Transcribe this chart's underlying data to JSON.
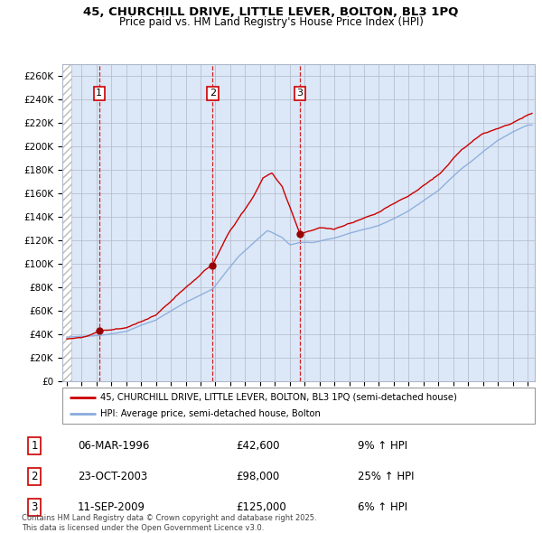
{
  "title_line1": "45, CHURCHILL DRIVE, LITTLE LEVER, BOLTON, BL3 1PQ",
  "title_line2": "Price paid vs. HM Land Registry's House Price Index (HPI)",
  "xlim_years": [
    1993.7,
    2025.5
  ],
  "ylim": [
    0,
    270000
  ],
  "yticks": [
    0,
    20000,
    40000,
    60000,
    80000,
    100000,
    120000,
    140000,
    160000,
    180000,
    200000,
    220000,
    240000,
    260000
  ],
  "ytick_labels": [
    "£0",
    "£20K",
    "£40K",
    "£60K",
    "£80K",
    "£100K",
    "£120K",
    "£140K",
    "£160K",
    "£180K",
    "£200K",
    "£220K",
    "£240K",
    "£260K"
  ],
  "sales": [
    {
      "date_year": 1996.18,
      "price": 42600,
      "label": "1"
    },
    {
      "date_year": 2003.81,
      "price": 98000,
      "label": "2"
    },
    {
      "date_year": 2009.69,
      "price": 125000,
      "label": "3"
    }
  ],
  "sale_table": [
    {
      "num": "1",
      "date": "06-MAR-1996",
      "price": "£42,600",
      "change": "9% ↑ HPI"
    },
    {
      "num": "2",
      "date": "23-OCT-2003",
      "price": "£98,000",
      "change": "25% ↑ HPI"
    },
    {
      "num": "3",
      "date": "11-SEP-2009",
      "price": "£125,000",
      "change": "6% ↑ HPI"
    }
  ],
  "legend_property": "45, CHURCHILL DRIVE, LITTLE LEVER, BOLTON, BL3 1PQ (semi-detached house)",
  "legend_hpi": "HPI: Average price, semi-detached house, Bolton",
  "footer": "Contains HM Land Registry data © Crown copyright and database right 2025.\nThis data is licensed under the Open Government Licence v3.0.",
  "bg_color": "#dce8f7",
  "hatch_color": "#bbbbbb",
  "property_line_color": "#cc0000",
  "hpi_line_color": "#88aadd",
  "sale_marker_color": "#990000",
  "vline_color": "#cc0000",
  "grid_color": "#b0b8c8",
  "box_edge_color": "#cc0000",
  "hatch_end_year": 1994.3
}
